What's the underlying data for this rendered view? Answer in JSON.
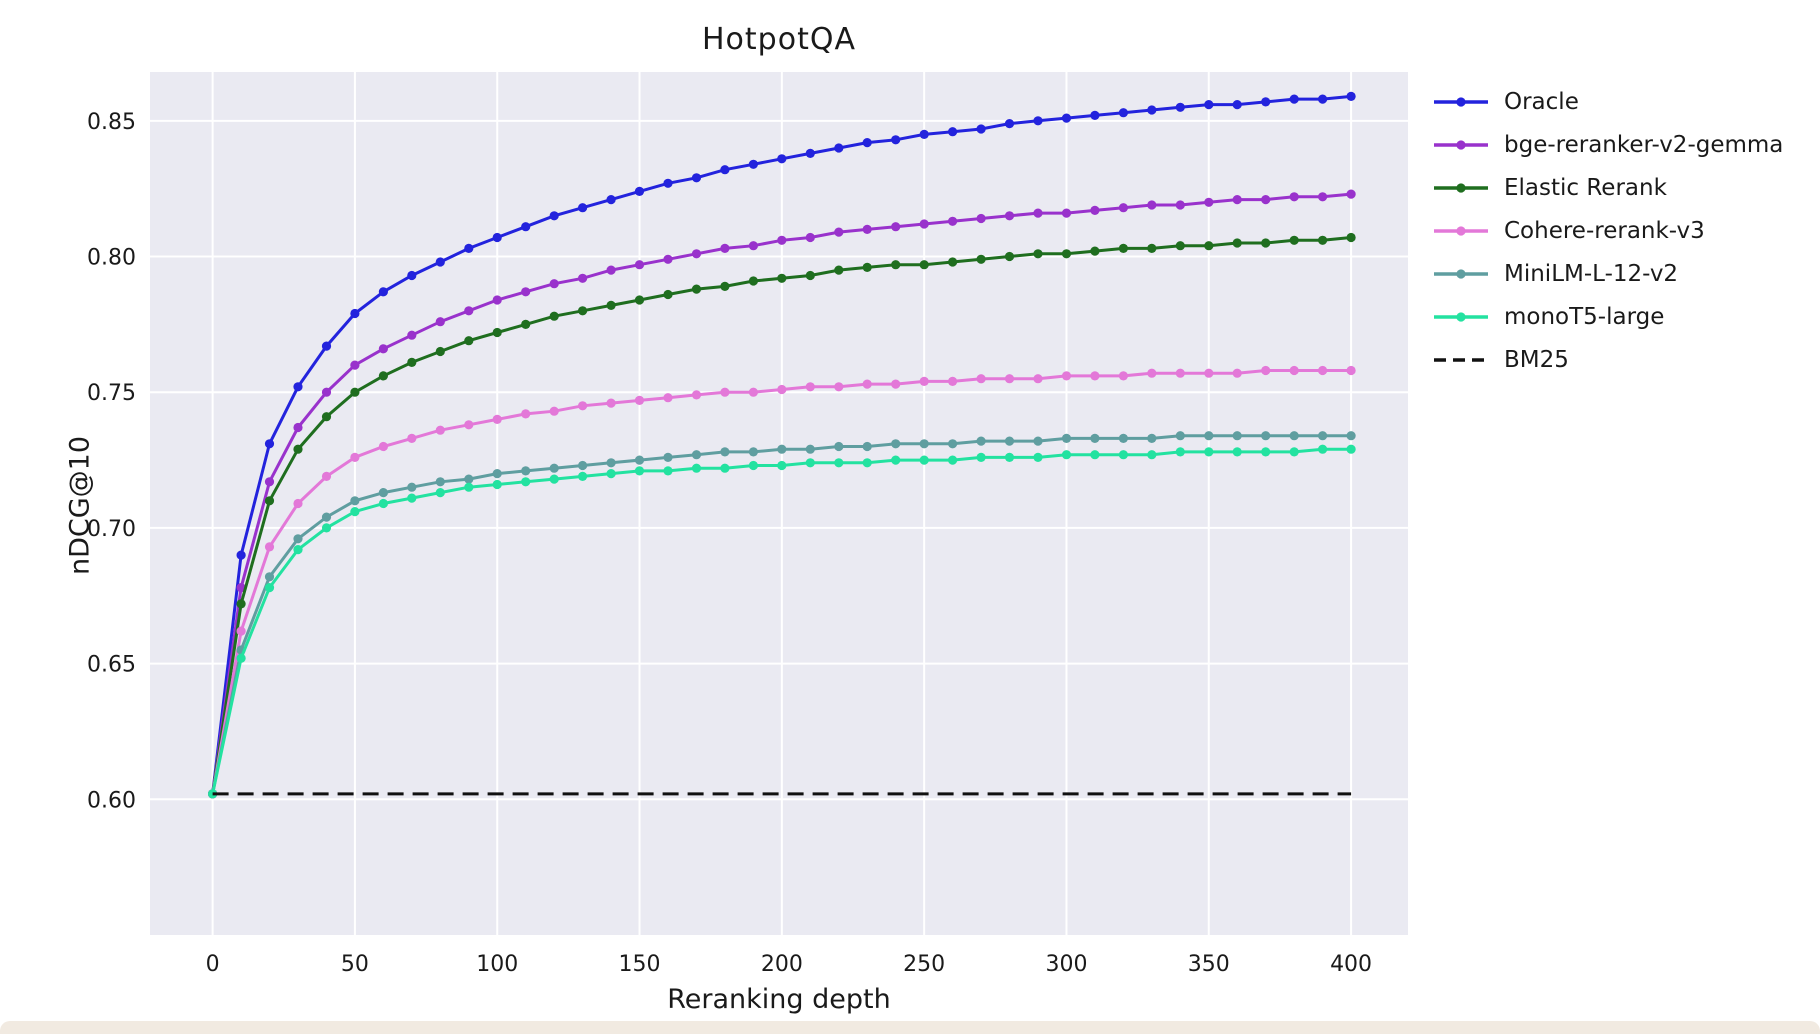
{
  "figure": {
    "background": "#ffffff",
    "plot_background": "#eaeaf2",
    "grid_color": "#ffffff"
  },
  "chart_data": {
    "type": "line",
    "title": "HotpotQA",
    "xlabel": "Reranking depth",
    "ylabel": "nDCG@10",
    "xlim": [
      -22,
      420
    ],
    "ylim": [
      0.55,
      0.868
    ],
    "x_ticks": [
      0,
      50,
      100,
      150,
      200,
      250,
      300,
      350,
      400
    ],
    "y_ticks": [
      0.6,
      0.65,
      0.7,
      0.75,
      0.8,
      0.85
    ],
    "grid": true,
    "legend_position": "right",
    "x": [
      0,
      10,
      20,
      30,
      40,
      50,
      60,
      70,
      80,
      90,
      100,
      110,
      120,
      130,
      140,
      150,
      160,
      170,
      180,
      190,
      200,
      210,
      220,
      230,
      240,
      250,
      260,
      270,
      280,
      290,
      300,
      310,
      320,
      330,
      340,
      350,
      360,
      370,
      380,
      390,
      400
    ],
    "series": [
      {
        "name": "Oracle",
        "color": "#2323dd",
        "marker": true,
        "dash": null,
        "values": [
          0.602,
          0.69,
          0.731,
          0.752,
          0.767,
          0.779,
          0.787,
          0.793,
          0.798,
          0.803,
          0.807,
          0.811,
          0.815,
          0.818,
          0.821,
          0.824,
          0.827,
          0.829,
          0.832,
          0.834,
          0.836,
          0.838,
          0.84,
          0.842,
          0.843,
          0.845,
          0.846,
          0.847,
          0.849,
          0.85,
          0.851,
          0.852,
          0.853,
          0.854,
          0.855,
          0.856,
          0.856,
          0.857,
          0.858,
          0.858,
          0.859
        ]
      },
      {
        "name": "bge-reranker-v2-gemma",
        "color": "#9932cc",
        "marker": true,
        "dash": null,
        "values": [
          0.602,
          0.678,
          0.717,
          0.737,
          0.75,
          0.76,
          0.766,
          0.771,
          0.776,
          0.78,
          0.784,
          0.787,
          0.79,
          0.792,
          0.795,
          0.797,
          0.799,
          0.801,
          0.803,
          0.804,
          0.806,
          0.807,
          0.809,
          0.81,
          0.811,
          0.812,
          0.813,
          0.814,
          0.815,
          0.816,
          0.816,
          0.817,
          0.818,
          0.819,
          0.819,
          0.82,
          0.821,
          0.821,
          0.822,
          0.822,
          0.823
        ]
      },
      {
        "name": "Elastic Rerank",
        "color": "#1f6e1f",
        "marker": true,
        "dash": null,
        "values": [
          0.602,
          0.672,
          0.71,
          0.729,
          0.741,
          0.75,
          0.756,
          0.761,
          0.765,
          0.769,
          0.772,
          0.775,
          0.778,
          0.78,
          0.782,
          0.784,
          0.786,
          0.788,
          0.789,
          0.791,
          0.792,
          0.793,
          0.795,
          0.796,
          0.797,
          0.797,
          0.798,
          0.799,
          0.8,
          0.801,
          0.801,
          0.802,
          0.803,
          0.803,
          0.804,
          0.804,
          0.805,
          0.805,
          0.806,
          0.806,
          0.807
        ]
      },
      {
        "name": "Cohere-rerank-v3",
        "color": "#e378d8",
        "marker": true,
        "dash": null,
        "values": [
          0.602,
          0.662,
          0.693,
          0.709,
          0.719,
          0.726,
          0.73,
          0.733,
          0.736,
          0.738,
          0.74,
          0.742,
          0.743,
          0.745,
          0.746,
          0.747,
          0.748,
          0.749,
          0.75,
          0.75,
          0.751,
          0.752,
          0.752,
          0.753,
          0.753,
          0.754,
          0.754,
          0.755,
          0.755,
          0.755,
          0.756,
          0.756,
          0.756,
          0.757,
          0.757,
          0.757,
          0.757,
          0.758,
          0.758,
          0.758,
          0.758
        ]
      },
      {
        "name": "MiniLM-L-12-v2",
        "color": "#5f9ea0",
        "marker": true,
        "dash": null,
        "values": [
          0.602,
          0.655,
          0.682,
          0.696,
          0.704,
          0.71,
          0.713,
          0.715,
          0.717,
          0.718,
          0.72,
          0.721,
          0.722,
          0.723,
          0.724,
          0.725,
          0.726,
          0.727,
          0.728,
          0.728,
          0.729,
          0.729,
          0.73,
          0.73,
          0.731,
          0.731,
          0.731,
          0.732,
          0.732,
          0.732,
          0.733,
          0.733,
          0.733,
          0.733,
          0.734,
          0.734,
          0.734,
          0.734,
          0.734,
          0.734,
          0.734
        ]
      },
      {
        "name": "monoT5-large",
        "color": "#23e2a0",
        "marker": true,
        "dash": null,
        "values": [
          0.602,
          0.652,
          0.678,
          0.692,
          0.7,
          0.706,
          0.709,
          0.711,
          0.713,
          0.715,
          0.716,
          0.717,
          0.718,
          0.719,
          0.72,
          0.721,
          0.721,
          0.722,
          0.722,
          0.723,
          0.723,
          0.724,
          0.724,
          0.724,
          0.725,
          0.725,
          0.725,
          0.726,
          0.726,
          0.726,
          0.727,
          0.727,
          0.727,
          0.727,
          0.728,
          0.728,
          0.728,
          0.728,
          0.728,
          0.729,
          0.729
        ]
      },
      {
        "name": "BM25",
        "color": "#111111",
        "marker": false,
        "dash": [
          16,
          9
        ],
        "x": [
          0,
          400
        ],
        "values": [
          0.602,
          0.602
        ]
      }
    ]
  }
}
